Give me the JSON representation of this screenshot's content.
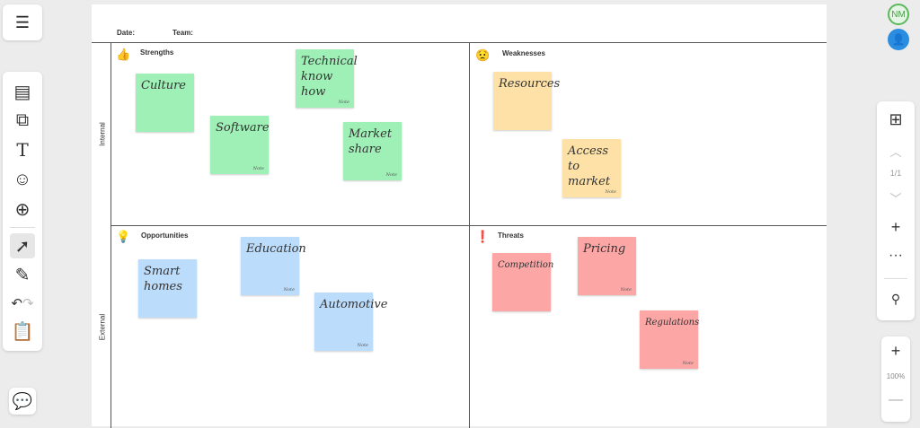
{
  "header": {
    "date_label": "Date:",
    "team_label": "Team:"
  },
  "axes": {
    "internal": "Internal",
    "external": "External"
  },
  "quadrants": [
    {
      "title": "Strengths",
      "icon": "thumbs-up-icon",
      "color": "#9ef0b6"
    },
    {
      "title": "Weaknesses",
      "icon": "worried-face-icon",
      "color": "#fde1a6"
    },
    {
      "title": "Opportunities",
      "icon": "lightbulb-icon",
      "color": "#bcdcfb"
    },
    {
      "title": "Threats",
      "icon": "warning-icon",
      "color": "#fca6a6"
    }
  ],
  "notes": [
    {
      "text": "Culture",
      "tag": ""
    },
    {
      "text": "Technical know how",
      "tag": "Note"
    },
    {
      "text": "Software",
      "tag": "Note"
    },
    {
      "text": "Market share",
      "tag": "Note"
    },
    {
      "text": "Resources",
      "tag": ""
    },
    {
      "text": "Access to market",
      "tag": "Note"
    },
    {
      "text": "Smart homes",
      "tag": ""
    },
    {
      "text": "Education",
      "tag": "Note"
    },
    {
      "text": "Automotive",
      "tag": "Note"
    },
    {
      "text": "Competition",
      "tag": ""
    },
    {
      "text": "Pricing",
      "tag": "Note"
    },
    {
      "text": "Regulations",
      "tag": "Note"
    }
  ],
  "user": {
    "initials": "NM"
  },
  "pages": {
    "indicator": "1/1"
  },
  "zoom": {
    "level": "100%"
  }
}
